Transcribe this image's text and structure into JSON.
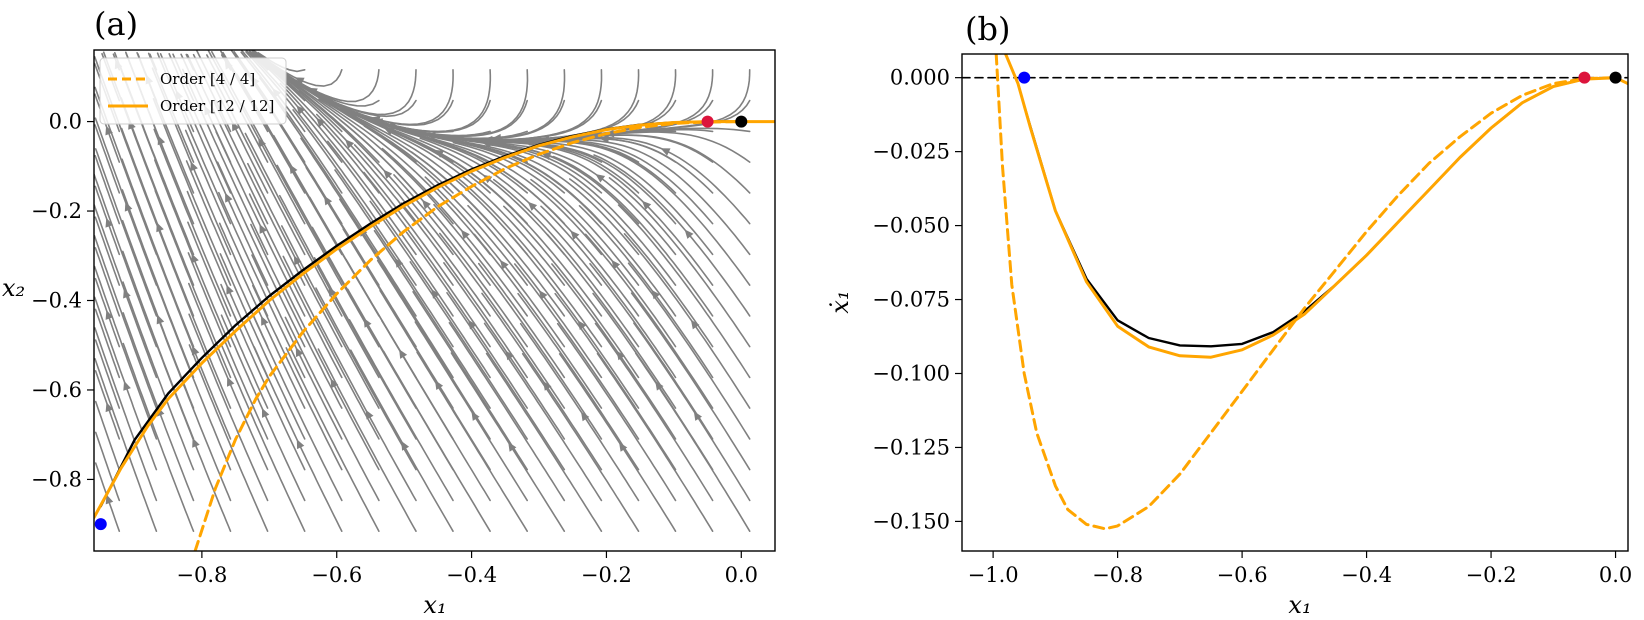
{
  "chart_data": [
    {
      "panel": "(a)",
      "type": "line",
      "subtype": "streamplot",
      "xlabel": "x₁",
      "ylabel": "x₂",
      "xlim": [
        -0.96,
        0.05
      ],
      "ylim": [
        -0.96,
        0.16
      ],
      "xticks": [
        -0.8,
        -0.6,
        -0.4,
        -0.2,
        0.0
      ],
      "xtick_labels": [
        "−0.8",
        "−0.6",
        "−0.4",
        "−0.2",
        "0.0"
      ],
      "yticks": [
        0.0,
        -0.2,
        -0.4,
        -0.6,
        -0.8
      ],
      "ytick_labels": [
        "0.0",
        "−0.2",
        "−0.4",
        "−0.6",
        "−0.8"
      ],
      "legend": {
        "position": "top-left",
        "entries": [
          {
            "label": "Order [4 / 4]",
            "color": "#FFA500",
            "style": "dashed"
          },
          {
            "label": "Order [12 / 12]",
            "color": "#FFA500",
            "style": "solid"
          }
        ]
      },
      "series": [
        {
          "name": "true manifold",
          "color": "#000000",
          "style": "solid",
          "x": [
            -0.95,
            -0.9,
            -0.85,
            -0.8,
            -0.75,
            -0.7,
            -0.65,
            -0.6,
            -0.55,
            -0.5,
            -0.45,
            -0.4,
            -0.35,
            -0.3,
            -0.25,
            -0.2,
            -0.15,
            -0.1,
            -0.05,
            0.0
          ],
          "y": [
            -0.86,
            -0.712,
            -0.608,
            -0.528,
            -0.455,
            -0.39,
            -0.332,
            -0.278,
            -0.228,
            -0.182,
            -0.142,
            -0.107,
            -0.077,
            -0.052,
            -0.032,
            -0.017,
            -0.007,
            -0.002,
            0.0,
            0.0
          ]
        },
        {
          "name": "Order [12 / 12]",
          "color": "#FFA500",
          "style": "solid",
          "x": [
            -0.96,
            -0.92,
            -0.88,
            -0.85,
            -0.8,
            -0.75,
            -0.7,
            -0.65,
            -0.6,
            -0.55,
            -0.5,
            -0.45,
            -0.4,
            -0.35,
            -0.3,
            -0.25,
            -0.2,
            -0.15,
            -0.1,
            -0.05,
            0.0,
            0.05
          ],
          "y": [
            -0.885,
            -0.775,
            -0.68,
            -0.62,
            -0.54,
            -0.468,
            -0.4,
            -0.34,
            -0.285,
            -0.235,
            -0.188,
            -0.147,
            -0.111,
            -0.08,
            -0.054,
            -0.034,
            -0.018,
            -0.008,
            -0.002,
            0.0,
            0.0,
            0.0
          ]
        },
        {
          "name": "Order [4 / 4]",
          "color": "#FFA500",
          "style": "dashed",
          "x": [
            -0.81,
            -0.78,
            -0.75,
            -0.72,
            -0.7,
            -0.65,
            -0.6,
            -0.55,
            -0.5,
            -0.45,
            -0.4,
            -0.35,
            -0.3,
            -0.25,
            -0.2,
            -0.15,
            -0.1,
            -0.05,
            0.0
          ],
          "y": [
            -0.96,
            -0.82,
            -0.71,
            -0.62,
            -0.57,
            -0.47,
            -0.385,
            -0.31,
            -0.245,
            -0.19,
            -0.145,
            -0.105,
            -0.073,
            -0.047,
            -0.027,
            -0.013,
            -0.004,
            -0.001,
            0.0
          ]
        }
      ],
      "points": [
        {
          "name": "blue point",
          "x": -0.95,
          "y": -0.9,
          "color": "#0000FF"
        },
        {
          "name": "red point",
          "x": -0.05,
          "y": 0.0,
          "color": "#DC143C"
        },
        {
          "name": "black point",
          "x": 0.0,
          "y": 0.0,
          "color": "#000000"
        }
      ],
      "stream_color": "#808080"
    },
    {
      "panel": "(b)",
      "type": "line",
      "xlabel": "x₁",
      "ylabel": "ẋ₁",
      "xlim": [
        -1.05,
        0.02
      ],
      "ylim": [
        -0.16,
        0.008
      ],
      "xticks": [
        -1.0,
        -0.8,
        -0.6,
        -0.4,
        -0.2,
        0.0
      ],
      "xtick_labels": [
        "−1.0",
        "−0.8",
        "−0.6",
        "−0.4",
        "−0.2",
        "0.0"
      ],
      "yticks": [
        0.0,
        -0.025,
        -0.05,
        -0.075,
        -0.1,
        -0.125,
        -0.15
      ],
      "ytick_labels": [
        "0.000",
        "−0.025",
        "−0.050",
        "−0.075",
        "−0.100",
        "−0.125",
        "−0.150"
      ],
      "series": [
        {
          "name": "zero line",
          "color": "#000000",
          "style": "dashed",
          "x": [
            -1.05,
            0.02
          ],
          "y": [
            0.0,
            0.0
          ]
        },
        {
          "name": "true",
          "color": "#000000",
          "style": "solid",
          "x": [
            -0.95,
            -0.9,
            -0.85,
            -0.8,
            -0.75,
            -0.7,
            -0.65,
            -0.6,
            -0.55,
            -0.5,
            -0.45,
            -0.4,
            -0.35,
            -0.3,
            -0.25,
            -0.2,
            -0.15,
            -0.1,
            -0.05,
            0.0
          ],
          "y": [
            -0.0095,
            -0.045,
            -0.068,
            -0.082,
            -0.088,
            -0.0905,
            -0.0908,
            -0.09,
            -0.086,
            -0.079,
            -0.07,
            -0.06,
            -0.049,
            -0.038,
            -0.027,
            -0.017,
            -0.0085,
            -0.003,
            -0.0005,
            0.0
          ]
        },
        {
          "name": "Order [12 / 12]",
          "color": "#FFA500",
          "style": "solid",
          "x": [
            -0.98,
            -0.96,
            -0.94,
            -0.92,
            -0.9,
            -0.85,
            -0.8,
            -0.75,
            -0.7,
            -0.65,
            -0.6,
            -0.55,
            -0.5,
            -0.45,
            -0.4,
            -0.35,
            -0.3,
            -0.25,
            -0.2,
            -0.15,
            -0.1,
            -0.05,
            0.0,
            0.02
          ],
          "y": [
            0.008,
            -0.002,
            -0.017,
            -0.031,
            -0.045,
            -0.069,
            -0.084,
            -0.091,
            -0.094,
            -0.0945,
            -0.092,
            -0.087,
            -0.08,
            -0.07,
            -0.06,
            -0.049,
            -0.038,
            -0.027,
            -0.017,
            -0.0085,
            -0.003,
            -0.0005,
            0.0,
            -0.002
          ]
        },
        {
          "name": "Order [4 / 4]",
          "color": "#FFA500",
          "style": "dashed",
          "x": [
            -0.995,
            -0.985,
            -0.97,
            -0.95,
            -0.93,
            -0.9,
            -0.88,
            -0.85,
            -0.82,
            -0.8,
            -0.75,
            -0.7,
            -0.65,
            -0.6,
            -0.55,
            -0.5,
            -0.45,
            -0.4,
            -0.35,
            -0.3,
            -0.25,
            -0.2,
            -0.15,
            -0.1,
            -0.05,
            0.0
          ],
          "y": [
            0.008,
            -0.03,
            -0.07,
            -0.1,
            -0.12,
            -0.138,
            -0.146,
            -0.151,
            -0.1525,
            -0.1515,
            -0.145,
            -0.134,
            -0.12,
            -0.106,
            -0.092,
            -0.078,
            -0.065,
            -0.052,
            -0.04,
            -0.029,
            -0.02,
            -0.012,
            -0.006,
            -0.002,
            -0.0003,
            0.0
          ]
        }
      ],
      "points": [
        {
          "name": "blue point",
          "x": -0.95,
          "y": 0.0,
          "color": "#0000FF"
        },
        {
          "name": "red point",
          "x": -0.05,
          "y": 0.0,
          "color": "#DC143C"
        },
        {
          "name": "black point",
          "x": 0.0,
          "y": 0.0,
          "color": "#000000"
        }
      ]
    }
  ]
}
